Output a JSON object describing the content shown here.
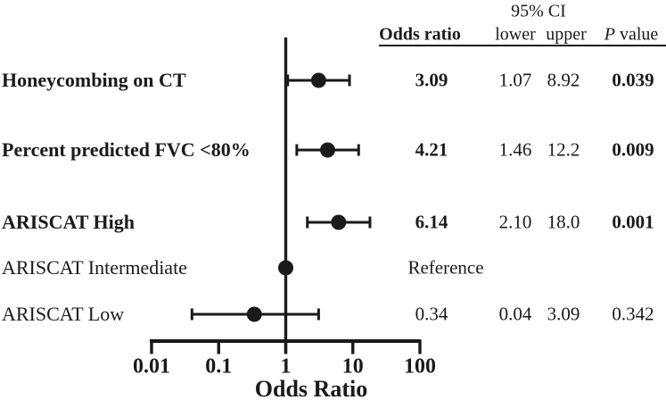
{
  "table_header": {
    "ci_group": "95% CI",
    "odds_ratio": "Odds ratio",
    "lower": "lower",
    "upper": "upper",
    "p_italic": "P",
    "p_rest": "value"
  },
  "chart_data": {
    "type": "forest",
    "title": "",
    "xlabel": "Odds Ratio",
    "x_scale": "log",
    "xlim": [
      0.01,
      100
    ],
    "x_ticks": [
      "0.01",
      "0.1",
      "1",
      "10",
      "100"
    ],
    "x_tick_values": [
      0.01,
      0.1,
      1,
      10,
      100
    ],
    "reference_line": 1,
    "rows": [
      {
        "label": "Honeycombing on CT",
        "label_bold": true,
        "or": 3.09,
        "ci_lower": 1.07,
        "ci_upper": 8.92,
        "or_text": "3.09",
        "lower_text": "1.07",
        "upper_text": "8.92",
        "p_text": "0.039",
        "emphasis": true
      },
      {
        "label": "Percent predicted FVC <80%",
        "label_bold": true,
        "or": 4.21,
        "ci_lower": 1.46,
        "ci_upper": 12.2,
        "or_text": "4.21",
        "lower_text": "1.46",
        "upper_text": "12.2",
        "p_text": "0.009",
        "emphasis": true
      },
      {
        "label": "ARISCAT High",
        "label_bold": true,
        "or": 6.14,
        "ci_lower": 2.1,
        "ci_upper": 18.0,
        "or_text": "6.14",
        "lower_text": "2.10",
        "upper_text": "18.0",
        "p_text": "0.001",
        "emphasis": true
      },
      {
        "label": "ARISCAT Intermediate",
        "label_bold": false,
        "or": 1,
        "ci_lower": null,
        "ci_upper": null,
        "or_text": "Reference",
        "lower_text": "",
        "upper_text": "",
        "p_text": "",
        "emphasis": false
      },
      {
        "label": "ARISCAT Low",
        "label_bold": false,
        "or": 0.34,
        "ci_lower": 0.04,
        "ci_upper": 3.09,
        "or_text": "0.34",
        "lower_text": "0.04",
        "upper_text": "3.09",
        "p_text": "0.342",
        "emphasis": false
      }
    ]
  },
  "colors": {
    "ink": "#1a1a1a",
    "background": "#ffffff"
  }
}
